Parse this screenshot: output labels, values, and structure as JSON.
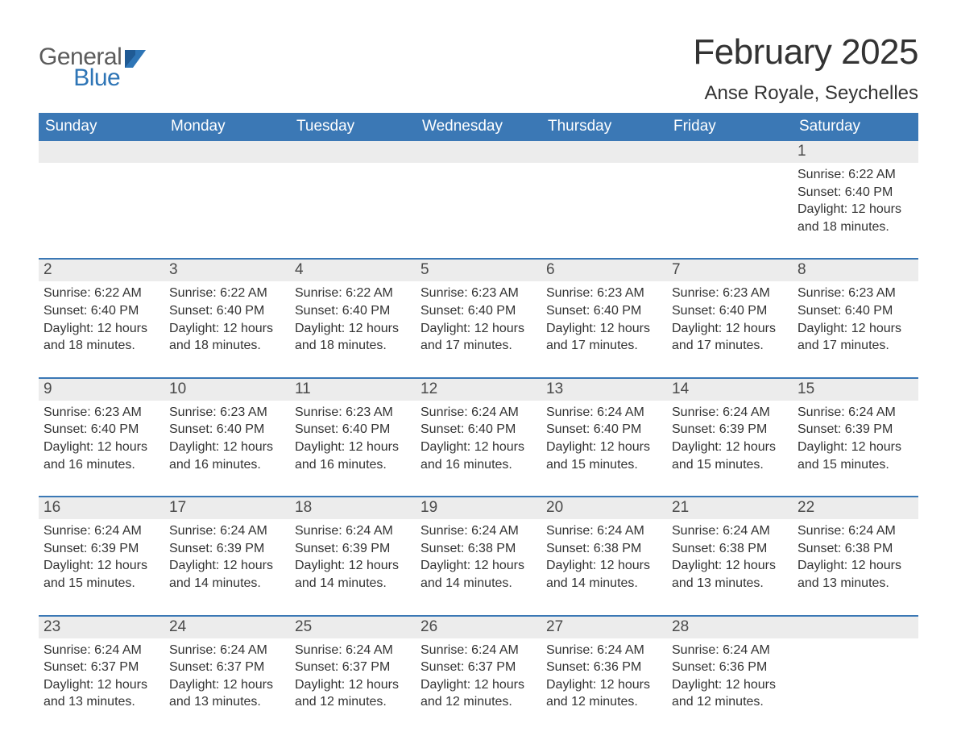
{
  "logo": {
    "text_general": "General",
    "text_blue": "Blue",
    "icon_color": "#2e75b6",
    "general_color": "#5c5c5c",
    "blue_color": "#2e75b6"
  },
  "title": {
    "month_year": "February 2025",
    "location": "Anse Royale, Seychelles",
    "title_fontsize": 44,
    "location_fontsize": 24,
    "title_color": "#333333"
  },
  "calendar": {
    "type": "table",
    "weekday_bg": "#3b78b5",
    "weekday_fg": "#ffffff",
    "daynum_strip_bg": "#ececec",
    "week_border_color": "#3b78b5",
    "body_text_color": "#333333",
    "cell_fontsize": 16,
    "weekdays": [
      "Sunday",
      "Monday",
      "Tuesday",
      "Wednesday",
      "Thursday",
      "Friday",
      "Saturday"
    ],
    "labels": {
      "sunrise": "Sunrise: ",
      "sunset": "Sunset: ",
      "daylight": "Daylight: "
    },
    "weeks": [
      [
        null,
        null,
        null,
        null,
        null,
        null,
        {
          "n": "1",
          "sr": "6:22 AM",
          "ss": "6:40 PM",
          "dl": "12 hours and 18 minutes."
        }
      ],
      [
        {
          "n": "2",
          "sr": "6:22 AM",
          "ss": "6:40 PM",
          "dl": "12 hours and 18 minutes."
        },
        {
          "n": "3",
          "sr": "6:22 AM",
          "ss": "6:40 PM",
          "dl": "12 hours and 18 minutes."
        },
        {
          "n": "4",
          "sr": "6:22 AM",
          "ss": "6:40 PM",
          "dl": "12 hours and 18 minutes."
        },
        {
          "n": "5",
          "sr": "6:23 AM",
          "ss": "6:40 PM",
          "dl": "12 hours and 17 minutes."
        },
        {
          "n": "6",
          "sr": "6:23 AM",
          "ss": "6:40 PM",
          "dl": "12 hours and 17 minutes."
        },
        {
          "n": "7",
          "sr": "6:23 AM",
          "ss": "6:40 PM",
          "dl": "12 hours and 17 minutes."
        },
        {
          "n": "8",
          "sr": "6:23 AM",
          "ss": "6:40 PM",
          "dl": "12 hours and 17 minutes."
        }
      ],
      [
        {
          "n": "9",
          "sr": "6:23 AM",
          "ss": "6:40 PM",
          "dl": "12 hours and 16 minutes."
        },
        {
          "n": "10",
          "sr": "6:23 AM",
          "ss": "6:40 PM",
          "dl": "12 hours and 16 minutes."
        },
        {
          "n": "11",
          "sr": "6:23 AM",
          "ss": "6:40 PM",
          "dl": "12 hours and 16 minutes."
        },
        {
          "n": "12",
          "sr": "6:24 AM",
          "ss": "6:40 PM",
          "dl": "12 hours and 16 minutes."
        },
        {
          "n": "13",
          "sr": "6:24 AM",
          "ss": "6:40 PM",
          "dl": "12 hours and 15 minutes."
        },
        {
          "n": "14",
          "sr": "6:24 AM",
          "ss": "6:39 PM",
          "dl": "12 hours and 15 minutes."
        },
        {
          "n": "15",
          "sr": "6:24 AM",
          "ss": "6:39 PM",
          "dl": "12 hours and 15 minutes."
        }
      ],
      [
        {
          "n": "16",
          "sr": "6:24 AM",
          "ss": "6:39 PM",
          "dl": "12 hours and 15 minutes."
        },
        {
          "n": "17",
          "sr": "6:24 AM",
          "ss": "6:39 PM",
          "dl": "12 hours and 14 minutes."
        },
        {
          "n": "18",
          "sr": "6:24 AM",
          "ss": "6:39 PM",
          "dl": "12 hours and 14 minutes."
        },
        {
          "n": "19",
          "sr": "6:24 AM",
          "ss": "6:38 PM",
          "dl": "12 hours and 14 minutes."
        },
        {
          "n": "20",
          "sr": "6:24 AM",
          "ss": "6:38 PM",
          "dl": "12 hours and 14 minutes."
        },
        {
          "n": "21",
          "sr": "6:24 AM",
          "ss": "6:38 PM",
          "dl": "12 hours and 13 minutes."
        },
        {
          "n": "22",
          "sr": "6:24 AM",
          "ss": "6:38 PM",
          "dl": "12 hours and 13 minutes."
        }
      ],
      [
        {
          "n": "23",
          "sr": "6:24 AM",
          "ss": "6:37 PM",
          "dl": "12 hours and 13 minutes."
        },
        {
          "n": "24",
          "sr": "6:24 AM",
          "ss": "6:37 PM",
          "dl": "12 hours and 13 minutes."
        },
        {
          "n": "25",
          "sr": "6:24 AM",
          "ss": "6:37 PM",
          "dl": "12 hours and 12 minutes."
        },
        {
          "n": "26",
          "sr": "6:24 AM",
          "ss": "6:37 PM",
          "dl": "12 hours and 12 minutes."
        },
        {
          "n": "27",
          "sr": "6:24 AM",
          "ss": "6:36 PM",
          "dl": "12 hours and 12 minutes."
        },
        {
          "n": "28",
          "sr": "6:24 AM",
          "ss": "6:36 PM",
          "dl": "12 hours and 12 minutes."
        },
        null
      ]
    ]
  }
}
